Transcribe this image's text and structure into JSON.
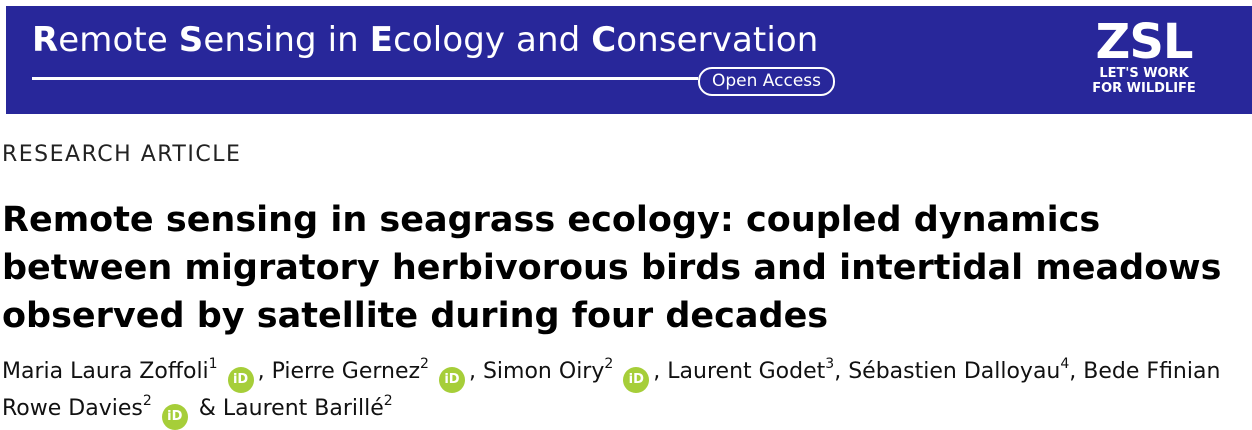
{
  "header": {
    "journal_title_parts": [
      {
        "initial": "R",
        "rest": "emote "
      },
      {
        "initial": "S",
        "rest": "ensing in "
      },
      {
        "initial": "E",
        "rest": "cology and "
      },
      {
        "initial": "C",
        "rest": "onservation"
      }
    ],
    "open_access": "Open Access",
    "logo": {
      "mark": "ZSL",
      "tagline_1": "LET'S WORK",
      "tagline_2": "FOR WILDLIFE"
    },
    "colors": {
      "banner": "#28279a",
      "orcid": "#a6ce39"
    }
  },
  "article": {
    "type": "RESEARCH ARTICLE",
    "title": "Remote sensing in seagrass ecology: coupled dynamics between migratory herbivorous birds and intertidal meadows observed by satellite during four decades",
    "authors": [
      {
        "name": "Maria Laura Zoffoli",
        "affiliation": "1",
        "orcid": "iD",
        "sep": ", "
      },
      {
        "name": "Pierre Gernez",
        "affiliation": "2",
        "orcid": "iD",
        "sep": ", "
      },
      {
        "name": "Simon Oiry",
        "affiliation": "2",
        "orcid": "iD",
        "sep": ", "
      },
      {
        "name": "Laurent Godet",
        "affiliation": "3",
        "orcid": "",
        "sep": ", "
      },
      {
        "name": "Sébastien Dalloyau",
        "affiliation": "4",
        "orcid": "",
        "sep": ", "
      },
      {
        "name": "Bede Ffinian Rowe Davies",
        "affiliation": "2",
        "orcid": "iD",
        "sep": " & "
      },
      {
        "name": "Laurent Barillé",
        "affiliation": "2",
        "orcid": "",
        "sep": ""
      }
    ]
  }
}
